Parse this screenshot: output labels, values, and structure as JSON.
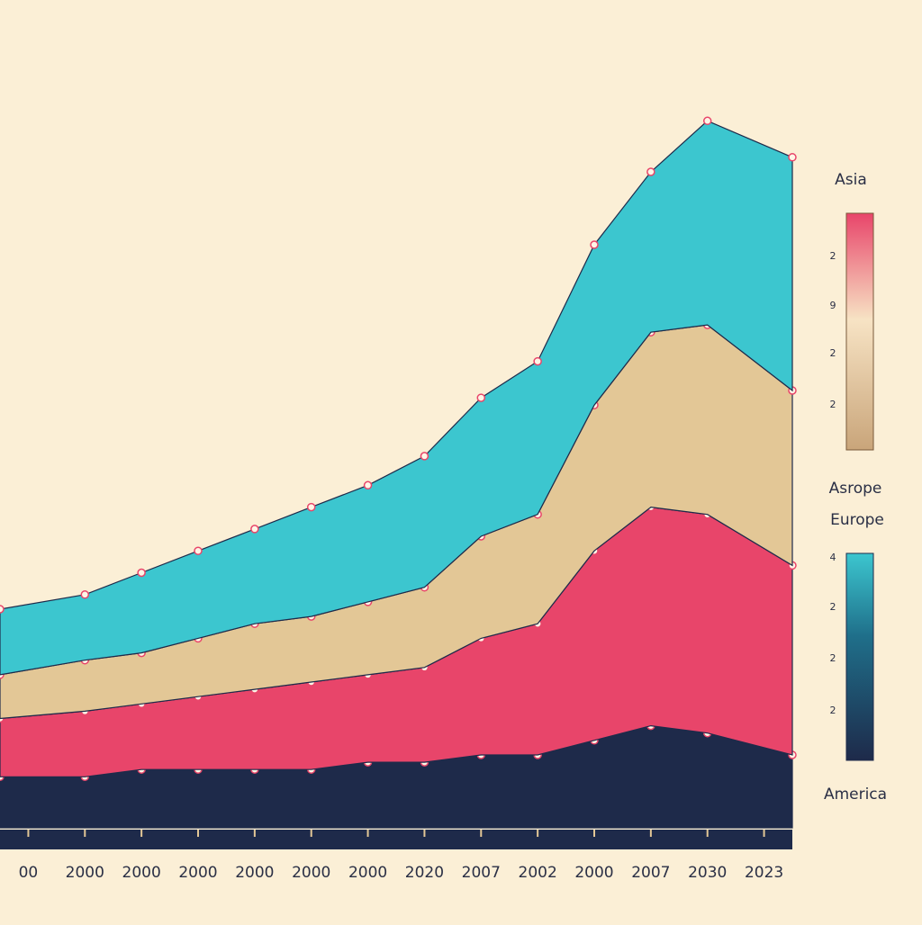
{
  "chart_data": {
    "type": "stacked-area",
    "categories": [
      "00",
      "2000",
      "2000",
      "2000",
      "2000",
      "2000",
      "2000",
      "2020",
      "2007",
      "2002",
      "2000",
      "2007",
      "2030",
      "2023"
    ],
    "series": [
      {
        "name": "America",
        "color": "#1e2a4a",
        "values": [
          7,
          7,
          8,
          8,
          8,
          8,
          9,
          9,
          10,
          10,
          12,
          14,
          13,
          10
        ]
      },
      {
        "name": "Europe",
        "color": "#e8456a",
        "values": [
          8,
          9,
          9,
          10,
          11,
          12,
          12,
          13,
          16,
          18,
          26,
          30,
          30,
          26
        ]
      },
      {
        "name": "Asrope",
        "color": "#e3c796",
        "values": [
          6,
          7,
          7,
          8,
          9,
          9,
          10,
          11,
          14,
          15,
          20,
          24,
          26,
          24
        ]
      },
      {
        "name": "Asia",
        "color": "#3cc6cf",
        "values": [
          9,
          9,
          11,
          12,
          13,
          15,
          16,
          18,
          19,
          21,
          22,
          22,
          28,
          32
        ]
      }
    ],
    "ylim": [
      0,
      100
    ],
    "legend_scales": [
      [
        "2",
        "9",
        "2",
        "2"
      ],
      [
        "4",
        "2",
        "2",
        "2"
      ]
    ]
  }
}
